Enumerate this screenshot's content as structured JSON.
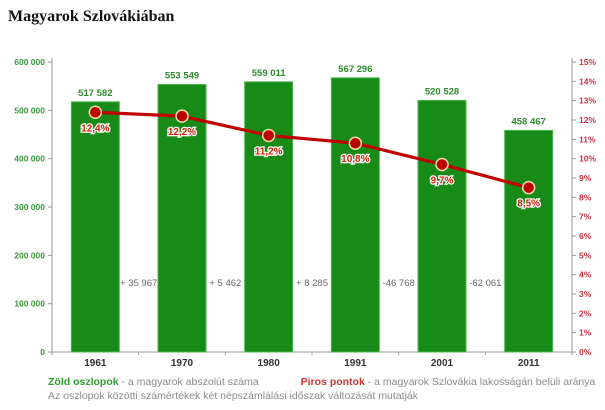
{
  "title": "Magyarok Szlovákiában",
  "legend": {
    "green_label": "Zöld oszlopok",
    "green_desc": " - a magyarok abszolút száma",
    "red_label": "Piros pontok",
    "red_desc": " - a magyarok Szlovákia lakosságán belüli aránya",
    "note": "Az oszlopok közötti számértékek két népszámlálási időszak változását mutatják"
  },
  "colors": {
    "bar_green": "#178a17",
    "bar_edge": "#4db84d",
    "value_label_green": "#2e8b2e",
    "axis_label_green": "#3a9a3a",
    "axis_label_red": "#cc3344",
    "line_red": "#c00000",
    "point_red": "#bb0000",
    "point_halo": "#f0d9a8",
    "pct_label_red": "#cc2200",
    "diff_gray": "#666666",
    "year_dark": "#333333",
    "axis_line": "#999999"
  },
  "chart_data": {
    "type": "bar",
    "title": "Magyarok Szlovákiában",
    "categories": [
      "1961",
      "1970",
      "1980",
      "1991",
      "2001",
      "2011"
    ],
    "series": [
      {
        "name": "a magyarok abszolút száma",
        "type": "bar",
        "axis": "left",
        "values": [
          517582,
          553549,
          559011,
          567296,
          520528,
          458467
        ],
        "labels": [
          "517 582",
          "553 549",
          "559 011",
          "567 296",
          "520 528",
          "458 467"
        ]
      },
      {
        "name": "a magyarok Szlovákia lakosságán belüli aránya",
        "type": "line",
        "axis": "right",
        "values": [
          12.4,
          12.2,
          11.2,
          10.8,
          9.7,
          8.5
        ],
        "labels": [
          "12,4%",
          "12,2%",
          "11,2%",
          "10,8%",
          "9,7%",
          "8,5%"
        ]
      }
    ],
    "differences": [
      "+ 35 967",
      "+ 5 462",
      "+ 8 285",
      "-46 768",
      "-62 061"
    ],
    "left_axis": {
      "min": 0,
      "max": 600000,
      "step": 100000,
      "tick_labels": [
        "0",
        "100 000",
        "200 000",
        "300 000",
        "400 000",
        "500 000",
        "600 000"
      ]
    },
    "right_axis": {
      "min": 0,
      "max": 15,
      "step": 1,
      "tick_labels": [
        "0%",
        "1%",
        "2%",
        "3%",
        "4%",
        "5%",
        "6%",
        "7%",
        "8%",
        "9%",
        "10%",
        "11%",
        "12%",
        "13%",
        "14%",
        "15%"
      ]
    },
    "grid": false,
    "legend_position": "bottom"
  }
}
